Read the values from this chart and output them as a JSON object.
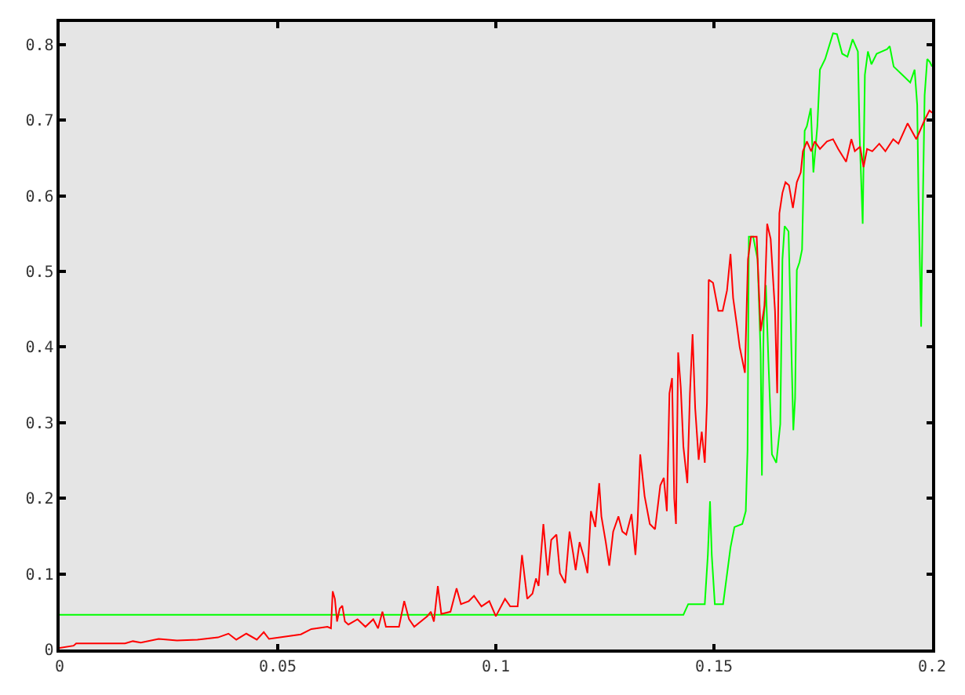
{
  "chart_data": {
    "type": "line",
    "xlim": [
      0,
      0.2
    ],
    "ylim": [
      0,
      0.83
    ],
    "xticks": [
      0,
      0.05,
      0.1,
      0.15,
      0.2
    ],
    "yticks": [
      0,
      0.1,
      0.2,
      0.3,
      0.4,
      0.5,
      0.6,
      0.7,
      0.8
    ],
    "grid": false,
    "marker": "none",
    "line_style": "solid",
    "series": [
      {
        "color": "#00ff00",
        "x": [
          0,
          0.143,
          0.1441,
          0.1479,
          0.1486,
          0.1491,
          0.1495,
          0.1502,
          0.1521,
          0.1538,
          0.1547,
          0.1565,
          0.1573,
          0.1577,
          0.158,
          0.159,
          0.16,
          0.1607,
          0.161,
          0.1614,
          0.1619,
          0.1625,
          0.1633,
          0.1643,
          0.1652,
          0.1657,
          0.1662,
          0.1671,
          0.1676,
          0.1682,
          0.1686,
          0.169,
          0.1696,
          0.1702,
          0.1708,
          0.1713,
          0.1722,
          0.1728,
          0.1737,
          0.1743,
          0.1755,
          0.1773,
          0.1782,
          0.1794,
          0.1806,
          0.1818,
          0.183,
          0.1834,
          0.1841,
          0.1846,
          0.1853,
          0.1861,
          0.1873,
          0.1885,
          0.1897,
          0.1903,
          0.1912,
          0.1932,
          0.195,
          0.196,
          0.1966,
          0.1969,
          0.1973,
          0.1975,
          0.1978,
          0.1983,
          0.1989,
          0.1995,
          0.2
        ],
        "values": [
          0.046,
          0.046,
          0.06,
          0.06,
          0.125,
          0.196,
          0.125,
          0.06,
          0.06,
          0.135,
          0.162,
          0.166,
          0.183,
          0.264,
          0.546,
          0.546,
          0.516,
          0.393,
          0.23,
          0.434,
          0.482,
          0.38,
          0.258,
          0.247,
          0.298,
          0.516,
          0.56,
          0.553,
          0.434,
          0.29,
          0.332,
          0.502,
          0.512,
          0.529,
          0.686,
          0.692,
          0.716,
          0.631,
          0.692,
          0.767,
          0.781,
          0.815,
          0.814,
          0.788,
          0.784,
          0.807,
          0.791,
          0.679,
          0.563,
          0.76,
          0.791,
          0.774,
          0.788,
          0.791,
          0.794,
          0.798,
          0.771,
          0.76,
          0.75,
          0.767,
          0.72,
          0.597,
          0.485,
          0.427,
          0.557,
          0.733,
          0.781,
          0.777,
          0.771
        ]
      },
      {
        "color": "#ff0000",
        "x": [
          0,
          0.0032,
          0.0038,
          0.015,
          0.0168,
          0.0186,
          0.0227,
          0.0269,
          0.0316,
          0.0363,
          0.0387,
          0.0405,
          0.0428,
          0.0452,
          0.0468,
          0.048,
          0.0505,
          0.0553,
          0.0577,
          0.0614,
          0.0622,
          0.0626,
          0.0631,
          0.0636,
          0.0642,
          0.0648,
          0.0654,
          0.0662,
          0.0683,
          0.0701,
          0.0719,
          0.073,
          0.074,
          0.0748,
          0.0778,
          0.079,
          0.0801,
          0.0813,
          0.0843,
          0.0851,
          0.0858,
          0.0867,
          0.0875,
          0.0896,
          0.091,
          0.092,
          0.0938,
          0.095,
          0.0967,
          0.0985,
          0.1,
          0.1021,
          0.1033,
          0.105,
          0.106,
          0.1072,
          0.1084,
          0.1092,
          0.1098,
          0.1109,
          0.1119,
          0.1127,
          0.1139,
          0.1147,
          0.1159,
          0.1169,
          0.1177,
          0.1183,
          0.1192,
          0.1202,
          0.121,
          0.1218,
          0.1228,
          0.1237,
          0.1242,
          0.1252,
          0.126,
          0.1269,
          0.1281,
          0.129,
          0.1299,
          0.1311,
          0.132,
          0.1325,
          0.1331,
          0.1341,
          0.1353,
          0.1365,
          0.1377,
          0.1385,
          0.1392,
          0.1398,
          0.1404,
          0.1409,
          0.1413,
          0.1418,
          0.1424,
          0.143,
          0.1439,
          0.1445,
          0.1451,
          0.1457,
          0.1465,
          0.1472,
          0.1479,
          0.1484,
          0.1488,
          0.1498,
          0.151,
          0.152,
          0.153,
          0.1538,
          0.1544,
          0.1553,
          0.1559,
          0.1571,
          0.1578,
          0.1585,
          0.1598,
          0.1607,
          0.1616,
          0.1622,
          0.163,
          0.164,
          0.1645,
          0.165,
          0.1657,
          0.1664,
          0.1672,
          0.1681,
          0.169,
          0.1699,
          0.1704,
          0.1713,
          0.1723,
          0.1731,
          0.1743,
          0.1759,
          0.1773,
          0.1785,
          0.1803,
          0.1815,
          0.1823,
          0.1835,
          0.1843,
          0.1851,
          0.1863,
          0.1879,
          0.1893,
          0.1911,
          0.1923,
          0.1944,
          0.1964,
          0.1982,
          0.1994,
          0.2
        ],
        "values": [
          0.002,
          0.005,
          0.008,
          0.008,
          0.011,
          0.009,
          0.014,
          0.012,
          0.013,
          0.016,
          0.021,
          0.013,
          0.021,
          0.013,
          0.023,
          0.014,
          0.016,
          0.02,
          0.027,
          0.03,
          0.028,
          0.077,
          0.067,
          0.037,
          0.054,
          0.058,
          0.037,
          0.033,
          0.04,
          0.03,
          0.04,
          0.028,
          0.05,
          0.03,
          0.03,
          0.064,
          0.04,
          0.03,
          0.044,
          0.05,
          0.037,
          0.084,
          0.047,
          0.05,
          0.081,
          0.06,
          0.064,
          0.071,
          0.057,
          0.064,
          0.044,
          0.067,
          0.057,
          0.057,
          0.125,
          0.067,
          0.074,
          0.094,
          0.084,
          0.166,
          0.098,
          0.145,
          0.152,
          0.101,
          0.088,
          0.156,
          0.128,
          0.105,
          0.142,
          0.122,
          0.101,
          0.183,
          0.162,
          0.22,
          0.176,
          0.142,
          0.111,
          0.156,
          0.176,
          0.156,
          0.152,
          0.179,
          0.125,
          0.169,
          0.258,
          0.203,
          0.166,
          0.159,
          0.217,
          0.227,
          0.183,
          0.339,
          0.359,
          0.2,
          0.166,
          0.393,
          0.346,
          0.268,
          0.22,
          0.339,
          0.417,
          0.319,
          0.251,
          0.288,
          0.247,
          0.326,
          0.489,
          0.485,
          0.448,
          0.448,
          0.475,
          0.523,
          0.465,
          0.427,
          0.4,
          0.366,
          0.516,
          0.546,
          0.546,
          0.421,
          0.455,
          0.563,
          0.543,
          0.448,
          0.339,
          0.577,
          0.604,
          0.618,
          0.614,
          0.584,
          0.618,
          0.631,
          0.659,
          0.672,
          0.659,
          0.672,
          0.662,
          0.672,
          0.675,
          0.662,
          0.645,
          0.675,
          0.659,
          0.665,
          0.638,
          0.662,
          0.659,
          0.669,
          0.659,
          0.675,
          0.669,
          0.696,
          0.675,
          0.699,
          0.713,
          0.71
        ]
      }
    ]
  }
}
